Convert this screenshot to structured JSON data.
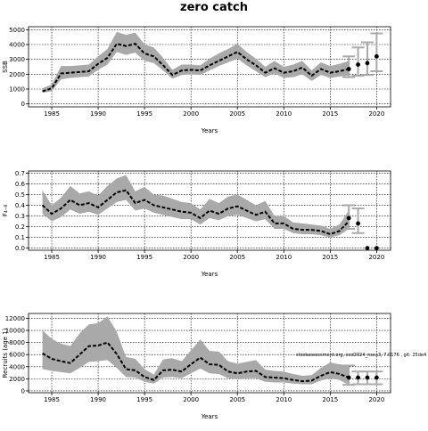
{
  "title": "zero catch",
  "footnote": "stockassessment.org, cod2024_nsea3, 7.0176 , git: 25de4",
  "chart_data": [
    {
      "type": "line",
      "ylabel": "SSB",
      "xlabel": "Years",
      "xlim": [
        1982.5,
        2021.5
      ],
      "ylim": [
        -200,
        5200
      ],
      "xticks": [
        1985,
        1990,
        1995,
        2000,
        2005,
        2010,
        2015,
        2020
      ],
      "yticks": [
        0,
        1000,
        2000,
        3000,
        4000,
        5000
      ],
      "ytick_labels": [
        "0",
        "1000",
        "2000",
        "3000",
        "4000",
        "5000"
      ],
      "grid": true,
      "series": [
        {
          "x": [
            1984,
            1985,
            1986,
            1987,
            1988,
            1989,
            1990,
            1991,
            1992,
            1993,
            1994,
            1995,
            1996,
            1997,
            1998,
            1999,
            2000,
            2001,
            2002,
            2003,
            2004,
            2005,
            2006,
            2007,
            2008,
            2009,
            2010,
            2011,
            2012,
            2013,
            2014,
            2015,
            2016,
            2017
          ],
          "y": [
            850,
            1050,
            2050,
            2100,
            2150,
            2200,
            2700,
            3100,
            4050,
            3900,
            4050,
            3400,
            3200,
            2600,
            1950,
            2250,
            2300,
            2250,
            2600,
            2900,
            3200,
            3500,
            3000,
            2600,
            2100,
            2400,
            2100,
            2200,
            2450,
            1900,
            2350,
            2100,
            2200,
            2350
          ],
          "lower": [
            750,
            850,
            1650,
            1750,
            1800,
            1850,
            2300,
            2650,
            3500,
            3300,
            3450,
            2900,
            2750,
            2250,
            1700,
            1950,
            2000,
            1950,
            2250,
            2550,
            2800,
            3050,
            2600,
            2200,
            1800,
            2050,
            1750,
            1800,
            2000,
            1550,
            1950,
            1750,
            1850,
            1900
          ],
          "upper": [
            1050,
            1300,
            2550,
            2550,
            2600,
            2650,
            3200,
            3700,
            4850,
            4650,
            4800,
            4000,
            3800,
            3100,
            2300,
            2650,
            2650,
            2600,
            3050,
            3400,
            3700,
            4050,
            3500,
            3050,
            2500,
            2900,
            2500,
            2650,
            2900,
            2250,
            2800,
            2550,
            2700,
            2900
          ]
        }
      ],
      "forecast": [
        {
          "x": 2017,
          "y": 2350,
          "lower": 1800,
          "upper": 3200
        },
        {
          "x": 2018,
          "y": 2650,
          "lower": 1900,
          "upper": 3800
        },
        {
          "x": 2019,
          "y": 2750,
          "lower": 1950,
          "upper": 4150
        },
        {
          "x": 2020,
          "y": 3200,
          "lower": 2200,
          "upper": 4750
        }
      ]
    },
    {
      "type": "line",
      "ylabel": "F₄₋₈",
      "xlabel": "Years",
      "xlim": [
        1982.5,
        2021.5
      ],
      "ylim": [
        -0.02,
        0.72
      ],
      "xticks": [
        1985,
        1990,
        1995,
        2000,
        2005,
        2010,
        2015,
        2020
      ],
      "yticks": [
        0.0,
        0.1,
        0.2,
        0.3,
        0.4,
        0.5,
        0.6,
        0.7
      ],
      "ytick_labels": [
        "0.0",
        "0.1",
        "0.2",
        "0.3",
        "0.4",
        "0.5",
        "0.6",
        "0.7"
      ],
      "grid": true,
      "series": [
        {
          "x": [
            1984,
            1985,
            1986,
            1987,
            1988,
            1989,
            1990,
            1991,
            1992,
            1993,
            1994,
            1995,
            1996,
            1997,
            1998,
            1999,
            2000,
            2001,
            2002,
            2003,
            2004,
            2005,
            2006,
            2007,
            2008,
            2009,
            2010,
            2011,
            2012,
            2013,
            2014,
            2015,
            2016,
            2017
          ],
          "y": [
            0.4,
            0.32,
            0.37,
            0.45,
            0.4,
            0.42,
            0.38,
            0.45,
            0.52,
            0.54,
            0.42,
            0.45,
            0.4,
            0.38,
            0.36,
            0.34,
            0.33,
            0.28,
            0.35,
            0.32,
            0.37,
            0.39,
            0.35,
            0.31,
            0.34,
            0.23,
            0.23,
            0.18,
            0.17,
            0.17,
            0.16,
            0.13,
            0.16,
            0.25
          ],
          "lower": [
            0.32,
            0.25,
            0.29,
            0.36,
            0.32,
            0.34,
            0.31,
            0.37,
            0.43,
            0.45,
            0.35,
            0.37,
            0.33,
            0.31,
            0.29,
            0.27,
            0.27,
            0.22,
            0.28,
            0.26,
            0.3,
            0.31,
            0.28,
            0.25,
            0.27,
            0.18,
            0.18,
            0.14,
            0.13,
            0.13,
            0.12,
            0.1,
            0.12,
            0.18
          ],
          "upper": [
            0.54,
            0.4,
            0.47,
            0.58,
            0.51,
            0.53,
            0.49,
            0.58,
            0.65,
            0.68,
            0.53,
            0.57,
            0.5,
            0.49,
            0.46,
            0.43,
            0.42,
            0.36,
            0.46,
            0.42,
            0.48,
            0.5,
            0.45,
            0.4,
            0.44,
            0.3,
            0.3,
            0.24,
            0.23,
            0.22,
            0.21,
            0.18,
            0.22,
            0.35
          ]
        }
      ],
      "forecast": [
        {
          "x": 2017,
          "y": 0.28,
          "lower": 0.18,
          "upper": 0.4
        },
        {
          "x": 2018,
          "y": 0.23,
          "lower": 0.14,
          "upper": 0.37
        },
        {
          "x": 2019,
          "y": 0.0,
          "lower": 0.0,
          "upper": 0.0
        },
        {
          "x": 2020,
          "y": 0.0,
          "lower": 0.0,
          "upper": 0.0
        }
      ]
    },
    {
      "type": "line",
      "ylabel": "Recruits (age 1)",
      "xlabel": "Years",
      "xlim": [
        1982.5,
        2021.5
      ],
      "ylim": [
        -300,
        12800
      ],
      "xticks": [
        1985,
        1990,
        1995,
        2000,
        2005,
        2010,
        2015,
        2020
      ],
      "yticks": [
        0,
        2000,
        4000,
        6000,
        8000,
        10000,
        12000
      ],
      "ytick_labels": [
        "0",
        "2000",
        "4000",
        "6000",
        "8000",
        "10000",
        "12000"
      ],
      "grid": true,
      "series": [
        {
          "x": [
            1984,
            1985,
            1986,
            1987,
            1988,
            1989,
            1990,
            1991,
            1992,
            1993,
            1994,
            1995,
            1996,
            1997,
            1998,
            1999,
            2000,
            2001,
            2002,
            2003,
            2004,
            2005,
            2006,
            2007,
            2008,
            2009,
            2010,
            2011,
            2012,
            2013,
            2014,
            2015,
            2016,
            2017
          ],
          "y": [
            6200,
            5300,
            4900,
            4600,
            6000,
            7400,
            7500,
            8000,
            6100,
            3600,
            3400,
            2300,
            1800,
            3400,
            3500,
            3200,
            4400,
            5500,
            4400,
            4300,
            3200,
            2900,
            3200,
            3300,
            2300,
            2200,
            2100,
            1800,
            1600,
            1700,
            2500,
            3100,
            2800,
            2200
          ],
          "lower": [
            3600,
            3300,
            3100,
            2900,
            3800,
            4800,
            4900,
            5100,
            3800,
            2300,
            2200,
            1500,
            1200,
            2200,
            2300,
            2100,
            2900,
            3700,
            2900,
            2800,
            2100,
            1900,
            2100,
            2100,
            1500,
            1400,
            1400,
            1200,
            1100,
            1100,
            1700,
            2100,
            1800,
            1000
          ],
          "upper": [
            10000,
            8600,
            7800,
            7400,
            9500,
            11000,
            11200,
            12300,
            9800,
            5600,
            5300,
            3600,
            2700,
            5200,
            5400,
            4900,
            6700,
            8500,
            6600,
            6500,
            4900,
            4500,
            4800,
            5100,
            3500,
            3300,
            3200,
            2800,
            2500,
            2600,
            3800,
            4700,
            4400,
            4200
          ]
        }
      ],
      "forecast": [
        {
          "x": 2017,
          "y": 2200,
          "lower": 1000,
          "upper": 4200
        },
        {
          "x": 2018,
          "y": 2200,
          "lower": 1100,
          "upper": 3200
        },
        {
          "x": 2019,
          "y": 2200,
          "lower": 1100,
          "upper": 3200
        },
        {
          "x": 2020,
          "y": 2200,
          "lower": 1100,
          "upper": 3200
        }
      ]
    }
  ]
}
